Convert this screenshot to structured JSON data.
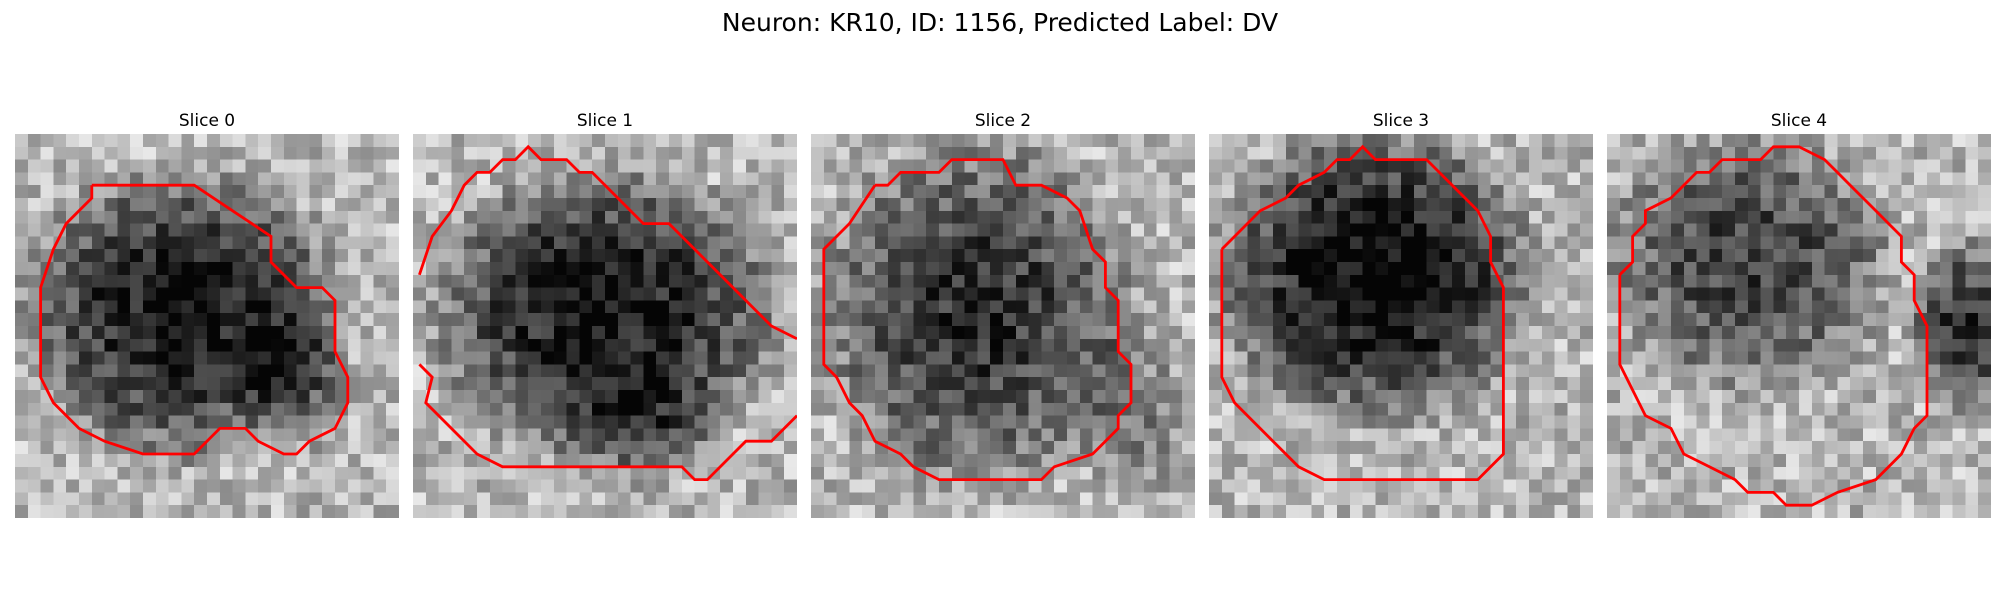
{
  "figure": {
    "title": "Neuron: KR10, ID: 1156, Predicted Label: DV",
    "contour_color": "#ff0000",
    "colormap": "grayscale"
  },
  "panels": [
    {
      "title": "Slice 0"
    },
    {
      "title": "Slice 1"
    },
    {
      "title": "Slice 2"
    },
    {
      "title": "Slice 3"
    },
    {
      "title": "Slice 4"
    }
  ]
}
